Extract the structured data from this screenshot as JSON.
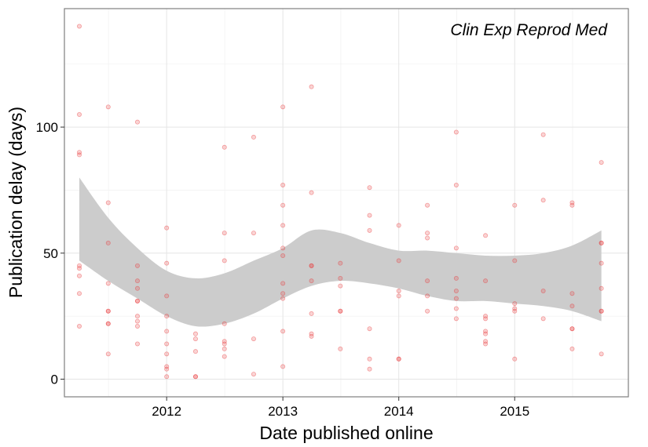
{
  "chart_data": {
    "type": "scatter",
    "annotation": "Clin Exp Reprod Med",
    "xlabel": "Date published online",
    "ylabel": "Publication delay (days)",
    "x_range": [
      "2011-02-13",
      "2015-12-25"
    ],
    "ylim": [
      -7,
      147
    ],
    "x_ticks": [
      {
        "date": "2012-01-01",
        "label": "2012"
      },
      {
        "date": "2013-01-01",
        "label": "2013"
      },
      {
        "date": "2014-01-01",
        "label": "2014"
      },
      {
        "date": "2015-01-01",
        "label": "2015"
      }
    ],
    "y_ticks": [
      0,
      50,
      100
    ],
    "y_minor_ticks": [
      25,
      75,
      125
    ],
    "grid": true,
    "point_color": "#e8393b",
    "band_color": "#cccccc",
    "series": [
      {
        "type": "scatter",
        "points": [
          [
            "2011-04-01",
            140
          ],
          [
            "2011-04-01",
            105
          ],
          [
            "2011-04-01",
            90
          ],
          [
            "2011-04-01",
            89
          ],
          [
            "2011-04-01",
            45
          ],
          [
            "2011-04-01",
            44
          ],
          [
            "2011-04-01",
            41
          ],
          [
            "2011-04-01",
            34
          ],
          [
            "2011-04-01",
            21
          ],
          [
            "2011-07-01",
            108
          ],
          [
            "2011-07-01",
            70
          ],
          [
            "2011-07-01",
            54
          ],
          [
            "2011-07-01",
            38
          ],
          [
            "2011-07-01",
            27
          ],
          [
            "2011-07-01",
            27
          ],
          [
            "2011-07-01",
            22
          ],
          [
            "2011-07-01",
            22
          ],
          [
            "2011-07-01",
            10
          ],
          [
            "2011-10-01",
            102
          ],
          [
            "2011-10-01",
            45
          ],
          [
            "2011-10-01",
            39
          ],
          [
            "2011-10-01",
            36
          ],
          [
            "2011-10-01",
            31
          ],
          [
            "2011-10-01",
            31
          ],
          [
            "2011-10-01",
            25
          ],
          [
            "2011-10-01",
            23
          ],
          [
            "2011-10-01",
            21
          ],
          [
            "2011-10-01",
            14
          ],
          [
            "2012-01-01",
            60
          ],
          [
            "2012-01-01",
            46
          ],
          [
            "2012-01-01",
            33
          ],
          [
            "2012-01-01",
            25
          ],
          [
            "2012-01-01",
            19
          ],
          [
            "2012-01-01",
            14
          ],
          [
            "2012-01-01",
            10
          ],
          [
            "2012-01-01",
            5
          ],
          [
            "2012-01-01",
            4
          ],
          [
            "2012-01-01",
            1
          ],
          [
            "2012-04-01",
            18
          ],
          [
            "2012-04-01",
            16
          ],
          [
            "2012-04-01",
            11
          ],
          [
            "2012-04-01",
            1
          ],
          [
            "2012-04-01",
            1
          ],
          [
            "2012-07-01",
            92
          ],
          [
            "2012-07-01",
            58
          ],
          [
            "2012-07-01",
            47
          ],
          [
            "2012-07-01",
            22
          ],
          [
            "2012-07-01",
            15
          ],
          [
            "2012-07-01",
            14
          ],
          [
            "2012-07-01",
            12
          ],
          [
            "2012-07-01",
            9
          ],
          [
            "2012-10-01",
            96
          ],
          [
            "2012-10-01",
            58
          ],
          [
            "2012-10-01",
            16
          ],
          [
            "2012-10-01",
            2
          ],
          [
            "2013-01-01",
            108
          ],
          [
            "2013-01-01",
            77
          ],
          [
            "2013-01-01",
            69
          ],
          [
            "2013-01-01",
            61
          ],
          [
            "2013-01-01",
            52
          ],
          [
            "2013-01-01",
            49
          ],
          [
            "2013-01-01",
            38
          ],
          [
            "2013-01-01",
            34
          ],
          [
            "2013-01-01",
            32
          ],
          [
            "2013-01-01",
            19
          ],
          [
            "2013-01-01",
            5
          ],
          [
            "2013-04-01",
            116
          ],
          [
            "2013-04-01",
            74
          ],
          [
            "2013-04-01",
            45
          ],
          [
            "2013-04-01",
            45
          ],
          [
            "2013-04-01",
            39
          ],
          [
            "2013-04-01",
            26
          ],
          [
            "2013-04-01",
            18
          ],
          [
            "2013-04-01",
            17
          ],
          [
            "2013-07-01",
            46
          ],
          [
            "2013-07-01",
            40
          ],
          [
            "2013-07-01",
            37
          ],
          [
            "2013-07-01",
            27
          ],
          [
            "2013-07-01",
            27
          ],
          [
            "2013-07-01",
            12
          ],
          [
            "2013-10-01",
            76
          ],
          [
            "2013-10-01",
            65
          ],
          [
            "2013-10-01",
            59
          ],
          [
            "2013-10-01",
            20
          ],
          [
            "2013-10-01",
            8
          ],
          [
            "2013-10-01",
            4
          ],
          [
            "2014-01-01",
            61
          ],
          [
            "2014-01-01",
            47
          ],
          [
            "2014-01-01",
            35
          ],
          [
            "2014-01-01",
            33
          ],
          [
            "2014-01-01",
            8
          ],
          [
            "2014-01-01",
            8
          ],
          [
            "2014-04-01",
            69
          ],
          [
            "2014-04-01",
            58
          ],
          [
            "2014-04-01",
            56
          ],
          [
            "2014-04-01",
            39
          ],
          [
            "2014-04-01",
            33
          ],
          [
            "2014-04-01",
            27
          ],
          [
            "2014-07-01",
            98
          ],
          [
            "2014-07-01",
            77
          ],
          [
            "2014-07-01",
            52
          ],
          [
            "2014-07-01",
            40
          ],
          [
            "2014-07-01",
            35
          ],
          [
            "2014-07-01",
            32
          ],
          [
            "2014-07-01",
            28
          ],
          [
            "2014-07-01",
            24
          ],
          [
            "2014-10-01",
            57
          ],
          [
            "2014-10-01",
            39
          ],
          [
            "2014-10-01",
            25
          ],
          [
            "2014-10-01",
            24
          ],
          [
            "2014-10-01",
            19
          ],
          [
            "2014-10-01",
            18
          ],
          [
            "2014-10-01",
            15
          ],
          [
            "2014-10-01",
            14
          ],
          [
            "2015-01-01",
            69
          ],
          [
            "2015-01-01",
            47
          ],
          [
            "2015-01-01",
            30
          ],
          [
            "2015-01-01",
            28
          ],
          [
            "2015-01-01",
            27
          ],
          [
            "2015-01-01",
            8
          ],
          [
            "2015-04-01",
            97
          ],
          [
            "2015-04-01",
            71
          ],
          [
            "2015-04-01",
            35
          ],
          [
            "2015-04-01",
            24
          ],
          [
            "2015-07-01",
            70
          ],
          [
            "2015-07-01",
            69
          ],
          [
            "2015-07-01",
            34
          ],
          [
            "2015-07-01",
            29
          ],
          [
            "2015-07-01",
            20
          ],
          [
            "2015-07-01",
            20
          ],
          [
            "2015-07-01",
            12
          ],
          [
            "2015-10-01",
            86
          ],
          [
            "2015-10-01",
            54
          ],
          [
            "2015-10-01",
            54
          ],
          [
            "2015-10-01",
            46
          ],
          [
            "2015-10-01",
            36
          ],
          [
            "2015-10-01",
            27
          ],
          [
            "2015-10-01",
            27
          ],
          [
            "2015-10-01",
            10
          ]
        ]
      },
      {
        "type": "confidence-band",
        "upper": [
          [
            "2011-04-01",
            80
          ],
          [
            "2011-07-01",
            64
          ],
          [
            "2011-10-01",
            52
          ],
          [
            "2012-01-01",
            43
          ],
          [
            "2012-04-01",
            40
          ],
          [
            "2012-07-01",
            42
          ],
          [
            "2012-10-01",
            47
          ],
          [
            "2013-01-01",
            52
          ],
          [
            "2013-04-01",
            59
          ],
          [
            "2013-07-01",
            58
          ],
          [
            "2013-10-01",
            54
          ],
          [
            "2014-01-01",
            51
          ],
          [
            "2014-04-01",
            51
          ],
          [
            "2014-07-01",
            50
          ],
          [
            "2014-10-01",
            49
          ],
          [
            "2015-01-01",
            49
          ],
          [
            "2015-04-01",
            50
          ],
          [
            "2015-07-01",
            53
          ],
          [
            "2015-10-01",
            59
          ]
        ],
        "lower": [
          [
            "2011-04-01",
            47
          ],
          [
            "2011-07-01",
            39
          ],
          [
            "2011-10-01",
            32
          ],
          [
            "2012-01-01",
            25
          ],
          [
            "2012-04-01",
            21
          ],
          [
            "2012-07-01",
            22
          ],
          [
            "2012-10-01",
            26
          ],
          [
            "2013-01-01",
            32
          ],
          [
            "2013-04-01",
            37
          ],
          [
            "2013-07-01",
            39
          ],
          [
            "2013-10-01",
            38
          ],
          [
            "2014-01-01",
            36
          ],
          [
            "2014-04-01",
            33
          ],
          [
            "2014-07-01",
            31
          ],
          [
            "2014-10-01",
            31
          ],
          [
            "2015-01-01",
            30
          ],
          [
            "2015-04-01",
            29
          ],
          [
            "2015-07-01",
            27
          ],
          [
            "2015-10-01",
            23
          ]
        ]
      }
    ]
  }
}
